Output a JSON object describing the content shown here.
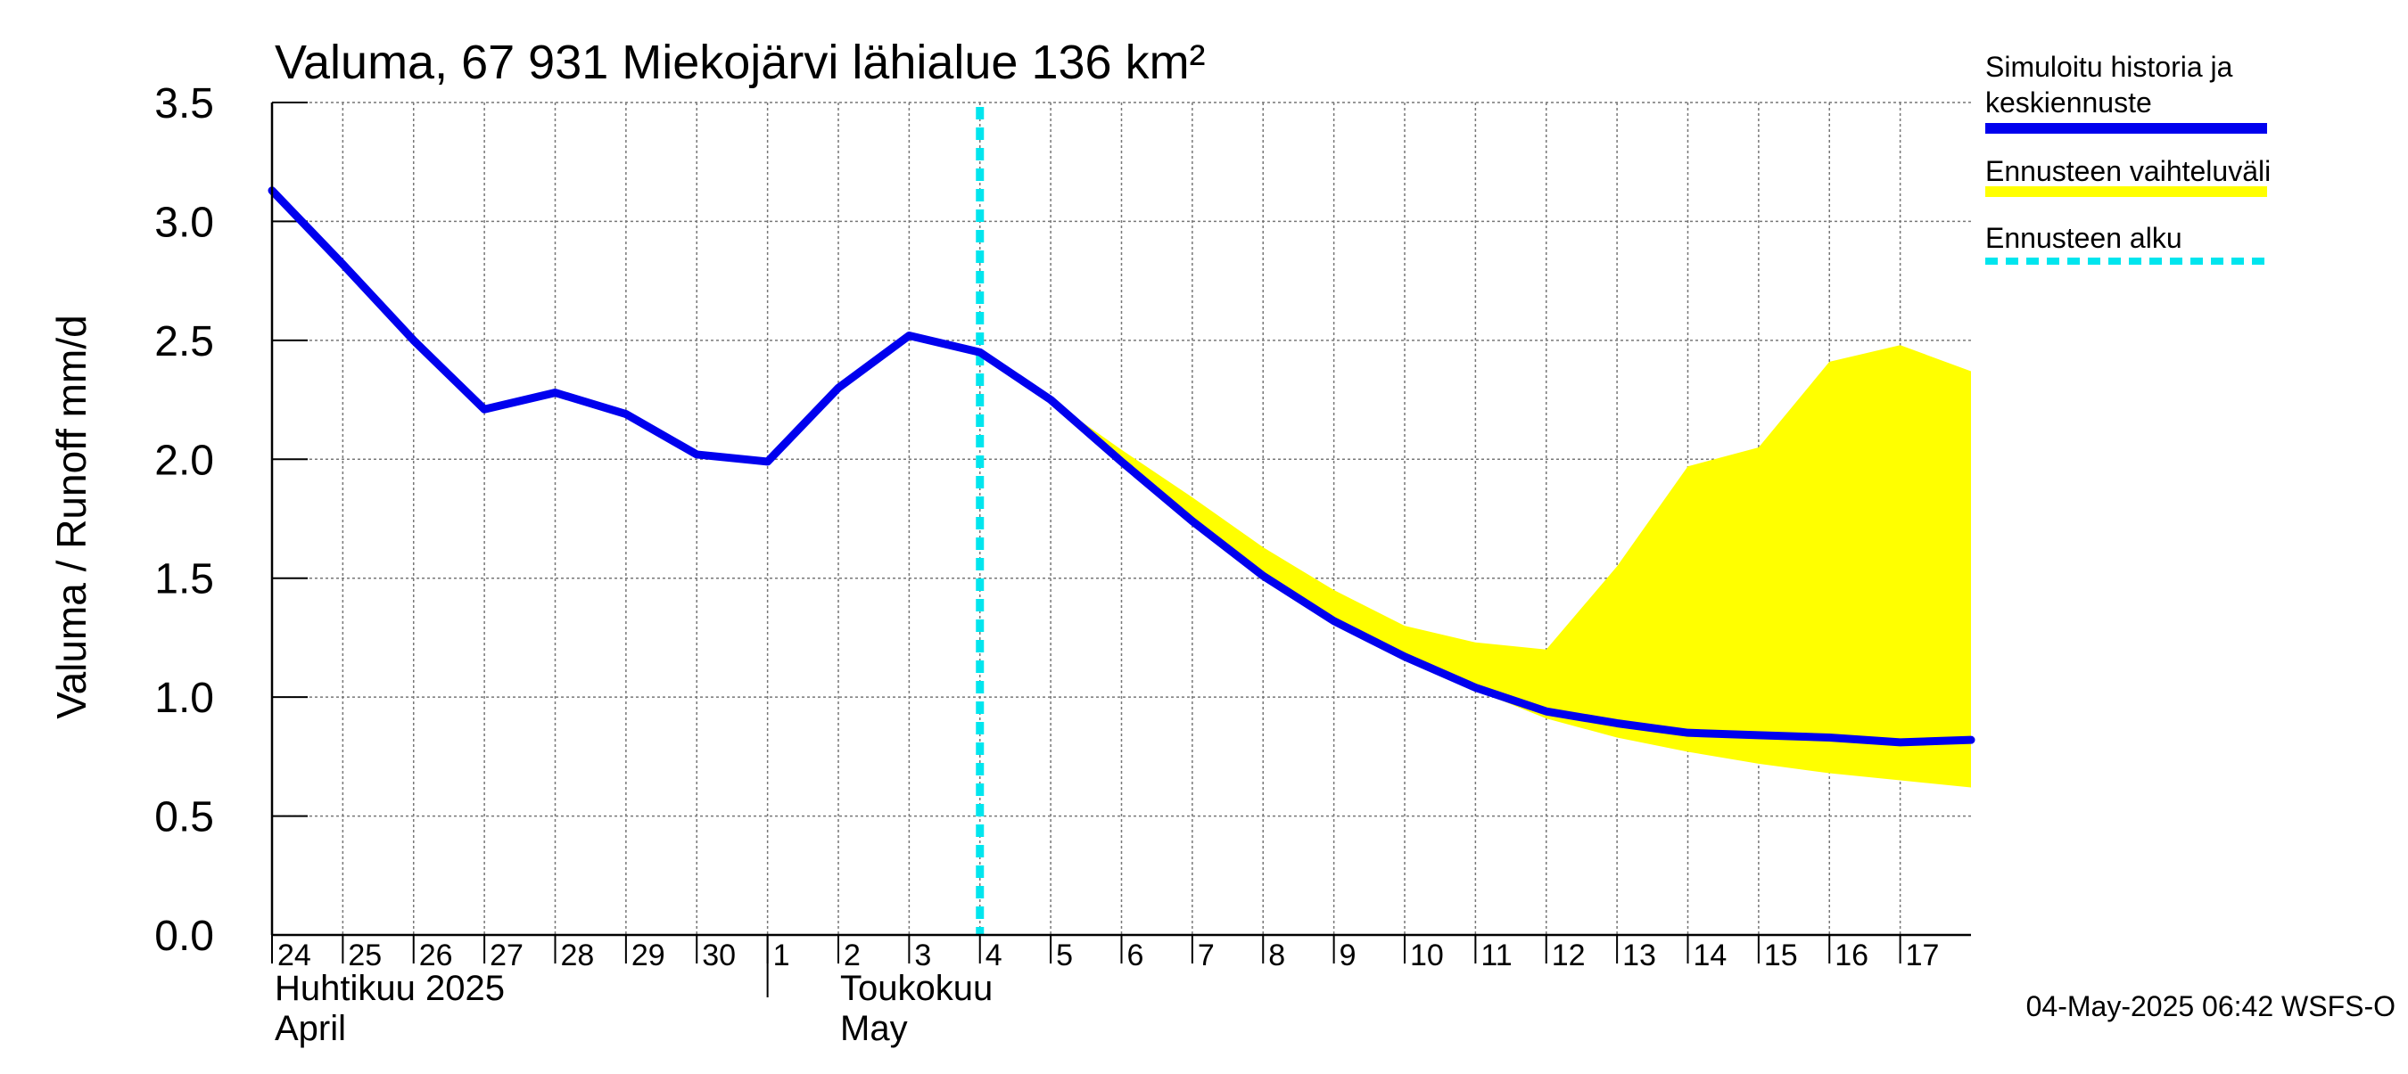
{
  "chart_data": {
    "type": "line",
    "title": "Valuma, 67 931 Miekojärvi lähialue 136 km²",
    "ylabel": "Valuma / Runoff     mm/d",
    "ylim": [
      0,
      3.5
    ],
    "yticks": [
      "0.0",
      "0.5",
      "1.0",
      "1.5",
      "2.0",
      "2.5",
      "3.0",
      "3.5"
    ],
    "xlim": [
      0,
      24
    ],
    "x_days": [
      "24",
      "25",
      "26",
      "27",
      "28",
      "29",
      "30",
      "1",
      "2",
      "3",
      "4",
      "5",
      "6",
      "7",
      "8",
      "9",
      "10",
      "11",
      "12",
      "13",
      "14",
      "15",
      "16",
      "17"
    ],
    "month_labels": {
      "april_fi": "Huhtikuu  2025",
      "april_en": "April",
      "may_fi": "Toukokuu",
      "may_en": "May"
    },
    "forecast_start_x": 10,
    "series": [
      {
        "name": "Simuloitu historia ja keskiennuste",
        "color": "#0000ee",
        "x": [
          0,
          1,
          2,
          3,
          4,
          5,
          6,
          7,
          8,
          9,
          10,
          11,
          12,
          13,
          14,
          15,
          16,
          17,
          18,
          19,
          20,
          21,
          22,
          23,
          24
        ],
        "values": [
          3.13,
          2.82,
          2.5,
          2.21,
          2.28,
          2.19,
          2.02,
          1.99,
          2.3,
          2.52,
          2.45,
          2.25,
          1.99,
          1.74,
          1.51,
          1.32,
          1.17,
          1.04,
          0.94,
          0.89,
          0.85,
          0.84,
          0.83,
          0.81,
          0.82
        ]
      },
      {
        "name": "Ennusteen vaihteluväli",
        "color": "#ffff00",
        "x": [
          10,
          11,
          12,
          13,
          14,
          15,
          16,
          17,
          18,
          19,
          20,
          21,
          22,
          23,
          24
        ],
        "upper": [
          2.45,
          2.25,
          2.04,
          1.84,
          1.63,
          1.45,
          1.3,
          1.23,
          1.2,
          1.55,
          1.97,
          2.05,
          2.41,
          2.48,
          2.37
        ],
        "lower": [
          2.45,
          2.25,
          1.99,
          1.74,
          1.51,
          1.32,
          1.17,
          1.03,
          0.91,
          0.83,
          0.77,
          0.72,
          0.68,
          0.65,
          0.62
        ]
      }
    ],
    "legend": [
      {
        "label_line1": "Simuloitu historia ja",
        "label_line2": "keskiennuste",
        "color": "#0000ee",
        "style": "solid"
      },
      {
        "label_line1": "Ennusteen vaihteluväli",
        "label_line2": "",
        "color": "#ffff00",
        "style": "solid"
      },
      {
        "label_line1": "Ennusteen alku",
        "label_line2": "",
        "color": "#00e5ee",
        "style": "dashed"
      }
    ],
    "footer": "04-May-2025 06:42 WSFS-O",
    "grid": true
  }
}
